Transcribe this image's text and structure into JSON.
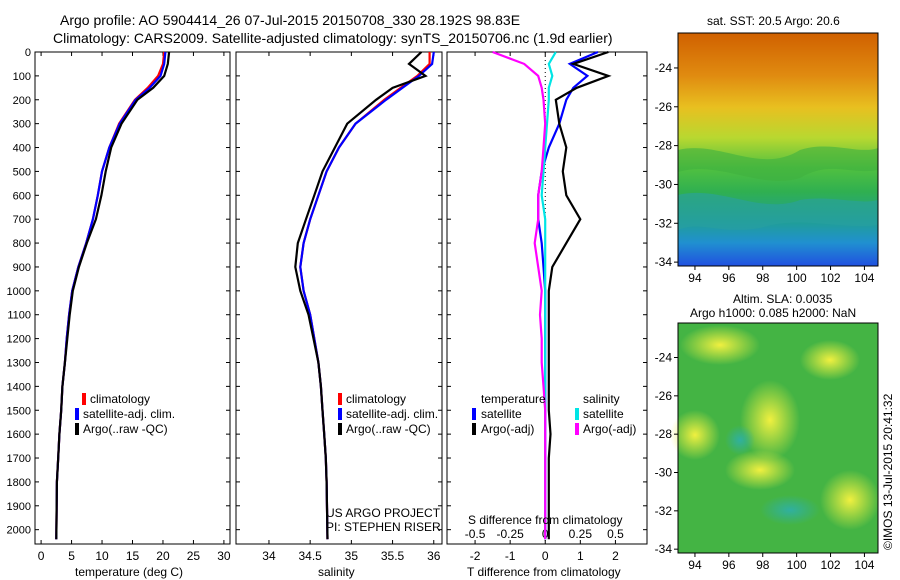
{
  "header": {
    "line1": "Argo profile: AO 5904414_26 07-Jul-2015 20150708_330 28.192S 98.83E",
    "line2": "Climatology: CARS2009. Satellite-adjusted climatology: synTS_20150706.nc (1.9d earlier)"
  },
  "colors": {
    "climatology": "#ff0000",
    "satellite": "#0000ff",
    "argo": "#000000",
    "salinity_satellite": "#00e5e5",
    "salinity_argo": "#ff00ff"
  },
  "legend_tp": {
    "items": [
      "climatology",
      "satellite-adj. clim.",
      "Argo(..raw -QC)"
    ]
  },
  "legend_sal": {
    "items": [
      "climatology",
      "satellite-adj. clim.",
      "Argo(..raw -QC)"
    ]
  },
  "legend_diff": {
    "temperature": "temperature",
    "salinity": "salinity",
    "items_t": [
      "satellite",
      "Argo(-adj)"
    ],
    "items_s": [
      "satellite",
      "Argo(-adj)"
    ]
  },
  "project": {
    "line1": "US ARGO PROJECT",
    "line2": "PI: STEPHEN RISER"
  },
  "map1": {
    "title": "sat. SST: 20.5 Argo: 20.6"
  },
  "map2": {
    "title1": "Altim. SLA: 0.0035",
    "title2": "Argo h1000: 0.085 h2000: NaN"
  },
  "stamp": "©IMOS 13-Jul-2015 20:41:32",
  "chart_data": [
    {
      "type": "line",
      "name": "temperature-profile",
      "xlabel": "temperature (deg C)",
      "ylabel": "",
      "xlim": [
        -1,
        31
      ],
      "ylim": [
        2060,
        0
      ],
      "x_ticks": [
        0,
        5,
        10,
        15,
        20,
        25,
        30
      ],
      "y_ticks": [
        0,
        100,
        200,
        300,
        400,
        500,
        600,
        700,
        800,
        900,
        1000,
        1100,
        1200,
        1300,
        1400,
        1500,
        1600,
        1700,
        1800,
        1900,
        2000
      ],
      "series": [
        {
          "name": "climatology",
          "color": "#ff0000",
          "x": [
            20.2,
            20.0,
            19.2,
            17.5,
            15.4,
            12.8,
            11.2,
            10.0,
            9.3,
            8.5,
            7.4,
            6.1,
            5.1,
            4.6,
            4.2,
            3.9,
            3.5,
            3.3,
            3.0,
            2.8,
            2.6,
            2.5
          ],
          "y": [
            0,
            50,
            100,
            150,
            200,
            300,
            400,
            500,
            600,
            700,
            800,
            900,
            1000,
            1100,
            1200,
            1300,
            1400,
            1500,
            1600,
            1700,
            1800,
            2040
          ]
        },
        {
          "name": "satellite-adj. clim.",
          "color": "#0000ff",
          "x": [
            20.4,
            20.2,
            19.6,
            17.8,
            15.5,
            12.9,
            11.2,
            10.0,
            9.3,
            8.5,
            7.4,
            6.1,
            5.1,
            4.6,
            4.2,
            3.9,
            3.5,
            3.3,
            3.0,
            2.8,
            2.6,
            2.5
          ],
          "y": [
            0,
            50,
            100,
            150,
            200,
            300,
            400,
            500,
            600,
            700,
            800,
            900,
            1000,
            1100,
            1200,
            1300,
            1400,
            1500,
            1600,
            1700,
            1800,
            2040
          ]
        },
        {
          "name": "Argo(..raw -QC)",
          "color": "#000000",
          "x": [
            21.0,
            20.8,
            20.2,
            18.4,
            15.8,
            13.2,
            11.5,
            10.6,
            9.9,
            9.0,
            7.5,
            6.2,
            5.2,
            4.7,
            4.3,
            3.9,
            3.5,
            3.3,
            3.0,
            2.8,
            2.6,
            2.5
          ],
          "y": [
            0,
            50,
            100,
            150,
            200,
            300,
            400,
            500,
            600,
            700,
            800,
            900,
            1000,
            1100,
            1200,
            1300,
            1400,
            1500,
            1600,
            1700,
            1800,
            2040
          ]
        }
      ],
      "legend": "lower-center"
    },
    {
      "type": "line",
      "name": "salinity-profile",
      "xlabel": "salinity",
      "ylabel": "",
      "xlim": [
        33.6,
        36.1
      ],
      "ylim": [
        2060,
        0
      ],
      "x_ticks": [
        34,
        34.5,
        35,
        35.5,
        36
      ],
      "series": [
        {
          "name": "climatology",
          "color": "#ff0000",
          "x": [
            35.95,
            35.95,
            35.8,
            35.6,
            35.4,
            35.05,
            34.85,
            34.7,
            34.6,
            34.5,
            34.42,
            34.38,
            34.42,
            34.5,
            34.55,
            34.6,
            34.63,
            34.65,
            34.67,
            34.69,
            34.7,
            34.71
          ],
          "y": [
            0,
            50,
            100,
            150,
            200,
            300,
            400,
            500,
            600,
            700,
            800,
            900,
            1000,
            1100,
            1200,
            1300,
            1400,
            1500,
            1600,
            1700,
            1800,
            2040
          ]
        },
        {
          "name": "satellite-adj. clim.",
          "color": "#0000ff",
          "x": [
            36.0,
            35.98,
            35.82,
            35.62,
            35.42,
            35.05,
            34.85,
            34.7,
            34.6,
            34.5,
            34.42,
            34.38,
            34.42,
            34.5,
            34.55,
            34.6,
            34.63,
            34.65,
            34.67,
            34.69,
            34.7,
            34.71
          ],
          "y": [
            0,
            50,
            100,
            150,
            200,
            300,
            400,
            500,
            600,
            700,
            800,
            900,
            1000,
            1100,
            1200,
            1300,
            1400,
            1500,
            1600,
            1700,
            1800,
            2040
          ]
        },
        {
          "name": "Argo(..raw -QC)",
          "color": "#000000",
          "x": [
            35.85,
            35.7,
            35.9,
            35.5,
            35.3,
            34.95,
            34.8,
            34.65,
            34.55,
            34.45,
            34.35,
            34.32,
            34.38,
            34.48,
            34.54,
            34.6,
            34.63,
            34.65,
            34.67,
            34.69,
            34.7,
            34.71
          ],
          "y": [
            0,
            50,
            100,
            150,
            200,
            300,
            400,
            500,
            600,
            700,
            800,
            900,
            1000,
            1100,
            1200,
            1300,
            1400,
            1500,
            1600,
            1700,
            1800,
            2040
          ]
        }
      ],
      "legend": "lower-center"
    },
    {
      "type": "line",
      "name": "difference-profile",
      "xlabel": "T difference from climatology",
      "xlabel2": "S difference from climatology",
      "xlim": [
        -2.8,
        2.9
      ],
      "ylim": [
        2060,
        0
      ],
      "x_ticks_t": [
        -2,
        -1,
        0,
        1,
        2
      ],
      "x_ticks_s": [
        "-0.5",
        "-0.25",
        "0",
        "0.25",
        "0.5"
      ],
      "x_ticks_s_pos": [
        -2,
        -1,
        0,
        1,
        2
      ],
      "series": [
        {
          "name": "T satellite",
          "color": "#0000ff",
          "x": [
            1.5,
            0.7,
            1.2,
            0.8,
            0.6,
            0.4,
            0.1,
            -0.1,
            -0.2,
            -0.2,
            -0.1,
            -0.05,
            0,
            0,
            0,
            0,
            0,
            0,
            0,
            0,
            0,
            0
          ],
          "y": [
            0,
            50,
            100,
            150,
            200,
            300,
            400,
            500,
            600,
            700,
            800,
            900,
            1000,
            1100,
            1200,
            1300,
            1400,
            1500,
            1600,
            1700,
            1800,
            2040
          ]
        },
        {
          "name": "T Argo(-adj)",
          "color": "#000000",
          "x": [
            1.8,
            0.8,
            1.8,
            0.9,
            0.3,
            0.4,
            0.6,
            0.5,
            0.6,
            1.0,
            0.6,
            0.2,
            0.1,
            0.1,
            0.1,
            0.1,
            0.1,
            0.1,
            0.15,
            0.1,
            0.1,
            0.1
          ],
          "y": [
            0,
            50,
            100,
            150,
            200,
            300,
            400,
            500,
            600,
            700,
            800,
            900,
            1000,
            1100,
            1200,
            1300,
            1400,
            1500,
            1600,
            1700,
            1800,
            2040
          ]
        },
        {
          "name": "S satellite",
          "color": "#00e5e5",
          "x": [
            0.3,
            0.1,
            0.2,
            0.1,
            0.1,
            0.05,
            0,
            -0.05,
            -0.1,
            0,
            0,
            0,
            0,
            0,
            0,
            0,
            0,
            0,
            0,
            0,
            0,
            0
          ],
          "y": [
            0,
            50,
            100,
            150,
            200,
            300,
            400,
            500,
            600,
            700,
            800,
            900,
            1000,
            1100,
            1200,
            1300,
            1400,
            1500,
            1600,
            1700,
            1800,
            2040
          ]
        },
        {
          "name": "S Argo(-adj)",
          "color": "#ff00ff",
          "x": [
            -1.5,
            -0.6,
            -0.2,
            -0.1,
            -0.05,
            0,
            -0.05,
            -0.1,
            -0.2,
            -0.2,
            -0.3,
            -0.2,
            -0.1,
            -0.15,
            -0.1,
            -0.1,
            -0.05,
            0,
            0,
            0,
            0,
            0
          ],
          "y": [
            0,
            50,
            100,
            150,
            200,
            300,
            400,
            500,
            600,
            700,
            800,
            900,
            1000,
            1100,
            1200,
            1300,
            1400,
            1500,
            1600,
            1700,
            1800,
            2040
          ]
        }
      ],
      "legend": "lower-center"
    },
    {
      "type": "heatmap",
      "name": "sst-map",
      "x_ticks": [
        94,
        96,
        98,
        100,
        102,
        104
      ],
      "y_ticks": [
        -24,
        -26,
        -28,
        -30,
        -32,
        -34
      ],
      "xlim": [
        93,
        104.8
      ],
      "ylim": [
        -34.2,
        -22.2
      ]
    },
    {
      "type": "heatmap",
      "name": "sla-map",
      "x_ticks": [
        94,
        96,
        98,
        100,
        102,
        104
      ],
      "y_ticks": [
        -24,
        -26,
        -28,
        -30,
        -32,
        -34
      ],
      "xlim": [
        93,
        104.8
      ],
      "ylim": [
        -34.2,
        -22.2
      ]
    }
  ]
}
